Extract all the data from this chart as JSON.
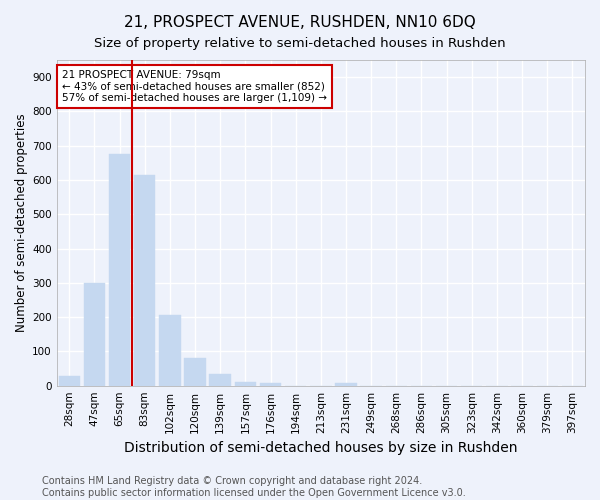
{
  "title": "21, PROSPECT AVENUE, RUSHDEN, NN10 6DQ",
  "subtitle": "Size of property relative to semi-detached houses in Rushden",
  "xlabel": "Distribution of semi-detached houses by size in Rushden",
  "ylabel": "Number of semi-detached properties",
  "categories": [
    "28sqm",
    "47sqm",
    "65sqm",
    "83sqm",
    "102sqm",
    "120sqm",
    "139sqm",
    "157sqm",
    "176sqm",
    "194sqm",
    "213sqm",
    "231sqm",
    "249sqm",
    "268sqm",
    "286sqm",
    "305sqm",
    "323sqm",
    "342sqm",
    "360sqm",
    "379sqm",
    "397sqm"
  ],
  "values": [
    28,
    300,
    675,
    615,
    207,
    80,
    33,
    12,
    9,
    0,
    0,
    7,
    0,
    0,
    0,
    0,
    0,
    0,
    0,
    0,
    0
  ],
  "bar_color": "#c5d8f0",
  "bar_edge_color": "#c5d8f0",
  "highlight_line_color": "#cc0000",
  "annotation_text": "21 PROSPECT AVENUE: 79sqm\n← 43% of semi-detached houses are smaller (852)\n57% of semi-detached houses are larger (1,109) →",
  "annotation_box_color": "#ffffff",
  "annotation_box_edge": "#cc0000",
  "ylim": [
    0,
    950
  ],
  "yticks": [
    0,
    100,
    200,
    300,
    400,
    500,
    600,
    700,
    800,
    900
  ],
  "footer": "Contains HM Land Registry data © Crown copyright and database right 2024.\nContains public sector information licensed under the Open Government Licence v3.0.",
  "background_color": "#eef2fb",
  "grid_color": "#ffffff",
  "title_fontsize": 11,
  "subtitle_fontsize": 9.5,
  "xlabel_fontsize": 10,
  "ylabel_fontsize": 8.5,
  "footer_fontsize": 7,
  "tick_fontsize": 7.5,
  "annotation_fontsize": 7.5,
  "red_line_bar_index": 3
}
